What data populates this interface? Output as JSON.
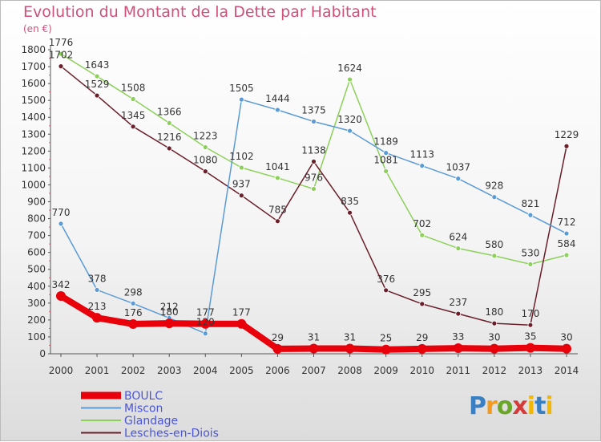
{
  "header": {
    "title": "Evolution du Montant de la Dette par Habitant",
    "unit": "(en €)"
  },
  "logo": {
    "text": "Proxiti"
  },
  "chart_data": {
    "type": "line",
    "title": "Evolution du Montant de la Dette par Habitant",
    "ylabel": "(en €)",
    "x": [
      2000,
      2001,
      2002,
      2003,
      2004,
      2005,
      2006,
      2007,
      2008,
      2009,
      2010,
      2011,
      2012,
      2013,
      2014
    ],
    "ylim": [
      0,
      1800
    ],
    "yticks": [
      0,
      100,
      200,
      300,
      400,
      500,
      600,
      700,
      800,
      900,
      1000,
      1100,
      1200,
      1300,
      1400,
      1500,
      1600,
      1700,
      1800
    ],
    "grid": false,
    "legend_position": "bottom-left",
    "series": [
      {
        "name": "Glandage",
        "color": "#8cd05a",
        "values": [
          1776,
          1643,
          1508,
          1366,
          1223,
          1102,
          1041,
          976,
          1624,
          1081,
          702,
          624,
          580,
          530,
          584
        ]
      },
      {
        "name": "Lesches-en-Diois",
        "color": "#6b1f2a",
        "values": [
          1702,
          1529,
          1345,
          1216,
          1080,
          937,
          785,
          1138,
          835,
          376,
          295,
          237,
          180,
          170,
          1229
        ]
      },
      {
        "name": "Miscon",
        "color": "#5b9bd5",
        "values": [
          770,
          378,
          298,
          212,
          120,
          1505,
          1444,
          1375,
          1320,
          1189,
          1113,
          1037,
          928,
          821,
          712
        ]
      },
      {
        "name": "BOULC",
        "color": "#e8000b",
        "values": [
          342,
          213,
          176,
          180,
          177,
          177,
          29,
          31,
          31,
          25,
          29,
          33,
          30,
          35,
          30
        ]
      }
    ],
    "data_labels": [
      {
        "series": "Glandage",
        "indices": [
          0,
          1,
          2,
          3,
          4,
          5,
          6,
          7,
          8,
          9,
          10,
          11,
          12,
          13,
          14
        ]
      },
      {
        "series": "Lesches-en-Diois",
        "indices": [
          0,
          1,
          2,
          3,
          4,
          5,
          6,
          7,
          8,
          9,
          10,
          11,
          12,
          13,
          14
        ]
      },
      {
        "series": "Miscon",
        "indices": [
          0,
          1,
          2,
          3,
          4,
          5,
          6,
          7,
          8,
          9,
          10,
          11,
          12,
          13,
          14
        ]
      },
      {
        "series": "BOULC",
        "indices": [
          0,
          1,
          2,
          3,
          4,
          5,
          6,
          7,
          8,
          9,
          10,
          11,
          12,
          13,
          14
        ]
      }
    ],
    "legend": [
      "BOULC",
      "Miscon",
      "Glandage",
      "Lesches-en-Diois"
    ]
  }
}
